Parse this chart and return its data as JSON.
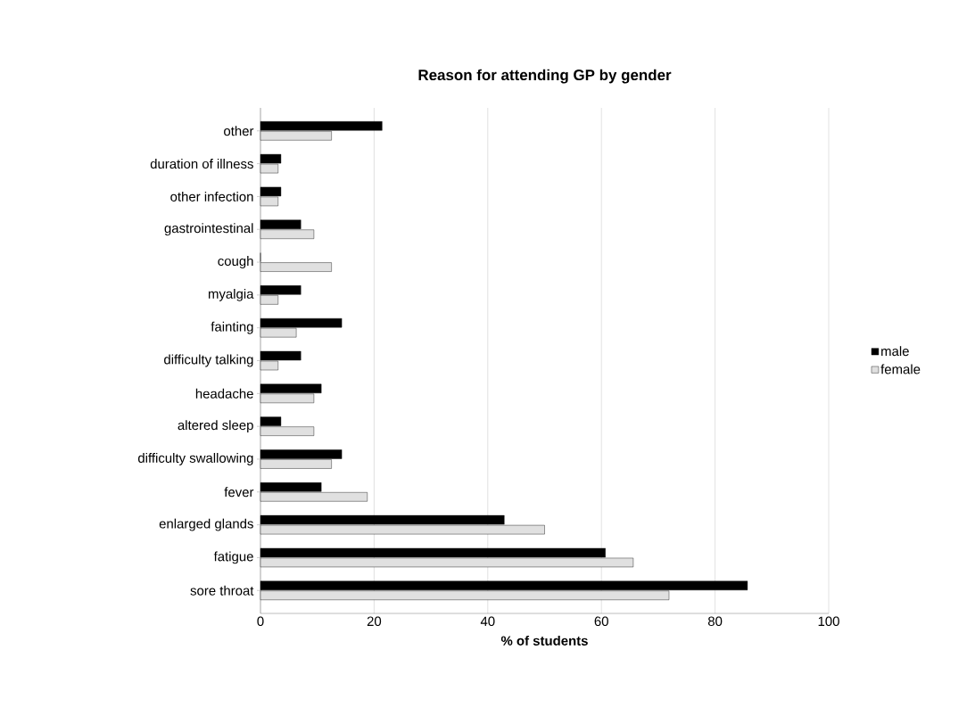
{
  "chart_data": {
    "type": "bar",
    "orientation": "horizontal",
    "title": "Reason for attending GP by gender",
    "xlabel": "% of students",
    "categories": [
      "other",
      "duration of illness",
      "other infection",
      "gastrointestinal",
      "cough",
      "myalgia",
      "fainting",
      "difficulty talking",
      "headache",
      "altered sleep",
      "difficulty swallowing",
      "fever",
      "enlarged glands",
      "fatigue",
      "sore throat"
    ],
    "series": [
      {
        "name": "male",
        "color": "#000000",
        "values": [
          21.4,
          3.6,
          3.6,
          7.1,
          0,
          7.1,
          14.3,
          7.1,
          10.7,
          3.6,
          14.3,
          10.7,
          42.9,
          60.7,
          85.7
        ]
      },
      {
        "name": "female",
        "color": "#e0e0e0",
        "values": [
          12.5,
          3.1,
          3.1,
          9.4,
          12.5,
          3.1,
          6.3,
          3.1,
          9.4,
          9.4,
          12.5,
          18.8,
          50,
          65.6,
          71.9
        ]
      }
    ],
    "xlim": [
      0,
      100
    ],
    "xticks": [
      0,
      20,
      40,
      60,
      80,
      100
    ],
    "grid": "x",
    "legend": "right"
  }
}
